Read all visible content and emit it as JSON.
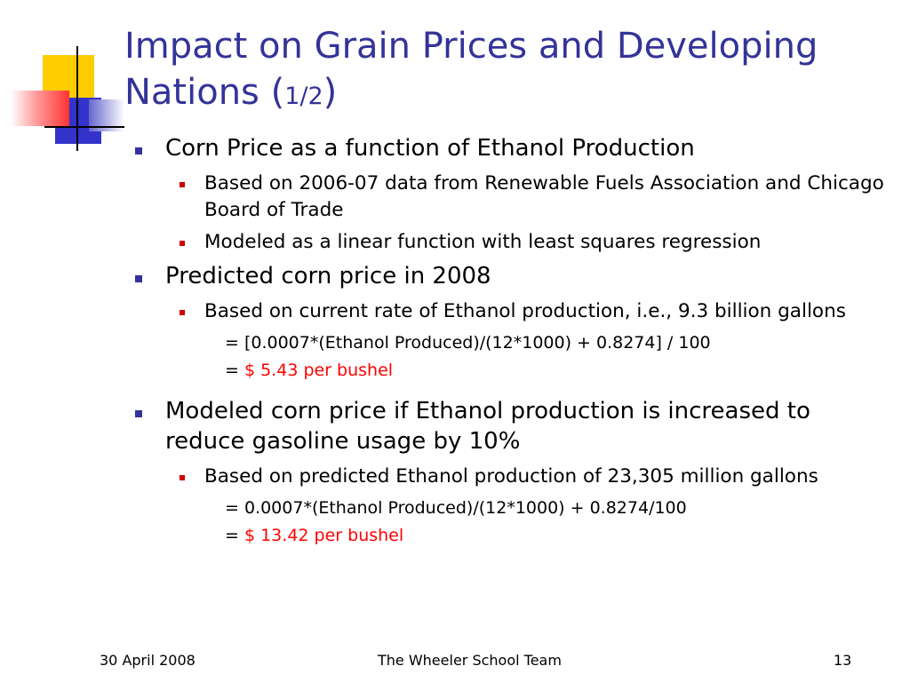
{
  "slide": {
    "title_main": "Impact on Grain Prices and Developing Nations (",
    "title_fraction": "1/2",
    "title_close": ")",
    "bullet1": {
      "text": "Corn Price as a function of Ethanol Production",
      "sub": [
        "Based on 2006-07 data from Renewable Fuels Association and Chicago Board of Trade",
        "Modeled as a linear function with least squares regression"
      ]
    },
    "bullet2": {
      "text": "Predicted corn price in 2008",
      "sub1": "Based on current rate of Ethanol production, i.e., 9.3 billion gallons",
      "formula": "= [0.0007*(Ethanol Produced)/(12*1000) + 0.8274] / 100",
      "result_prefix": "= ",
      "result": "$ 5.43 per bushel"
    },
    "bullet3": {
      "text": "Modeled corn price if Ethanol production is increased to reduce gasoline usage by 10%",
      "sub1": "Based on predicted Ethanol production of  23,305 million gallons",
      "formula": "= 0.0007*(Ethanol Produced)/(12*1000) + 0.8274/100",
      "result_prefix": "= ",
      "result": "$ 13.42 per bushel"
    }
  },
  "footer": {
    "date": "30 April 2008",
    "team": "The Wheeler School Team",
    "page": "13"
  },
  "colors": {
    "title": "#333399",
    "highlight": "#ff0000",
    "logo_yellow": "#ffcc00",
    "logo_blue": "#3333cc",
    "logo_red": "#ff3333"
  }
}
